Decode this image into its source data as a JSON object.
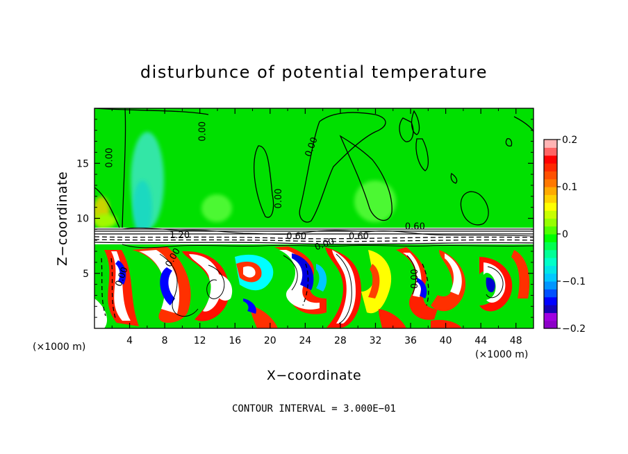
{
  "chart_data": {
    "type": "heatmap",
    "title": "disturbunce of potential temperature",
    "xlabel": "X−coordinate",
    "ylabel": "Z−coordinate",
    "x_unit_label": "(×1000 m)",
    "xlim": [
      0,
      50
    ],
    "ylim": [
      0,
      20
    ],
    "x_ticks": [
      4,
      8,
      12,
      16,
      20,
      24,
      28,
      32,
      36,
      40,
      44,
      48
    ],
    "y_ticks": [
      5,
      10,
      15
    ],
    "contour_interval_text": "CONTOUR INTERVAL = 3.000E−01",
    "colorbar": {
      "range": [
        -0.2,
        0.2
      ],
      "tick_labels": [
        "0.2",
        "0.1",
        "0",
        "−0.1",
        "−0.2"
      ],
      "tick_values": [
        0.2,
        0.1,
        0,
        -0.1,
        -0.2
      ],
      "colors": [
        "#8c00c8",
        "#a000e0",
        "#1400b4",
        "#0000ff",
        "#0050ff",
        "#0096ff",
        "#00c8ff",
        "#00e6e6",
        "#00ffc8",
        "#00ff96",
        "#00ff50",
        "#00ff00",
        "#50ff00",
        "#96ff00",
        "#c8ff00",
        "#ffff00",
        "#ffd200",
        "#ffaa00",
        "#ff7800",
        "#ff5000",
        "#ff2800",
        "#ff0000",
        "#ff6464",
        "#ffb4b4"
      ]
    },
    "contour_labels": [
      {
        "text": "0.00",
        "x": 2.0,
        "y": 15.5,
        "angle": -90
      },
      {
        "text": "0.00",
        "x": 12.6,
        "y": 17.9,
        "angle": -90
      },
      {
        "text": "0.00",
        "x": 25.0,
        "y": 16.4,
        "angle": -70
      },
      {
        "text": "0.00",
        "x": 21.3,
        "y": 11.8,
        "angle": -90
      },
      {
        "text": "0.60",
        "x": 36.5,
        "y": 9.0,
        "angle": 0
      },
      {
        "text": "1.20",
        "x": 9.7,
        "y": 8.2,
        "angle": 0
      },
      {
        "text": "0.60",
        "x": 23.0,
        "y": 8.1,
        "angle": 0
      },
      {
        "text": "0.00",
        "x": 26.3,
        "y": 7.4,
        "angle": -20
      },
      {
        "text": "0.60",
        "x": 30.1,
        "y": 8.1,
        "angle": 0
      },
      {
        "text": "0.00",
        "x": 9.2,
        "y": 6.3,
        "angle": -60
      },
      {
        "text": "0.00",
        "x": 3.4,
        "y": 4.6,
        "angle": -70
      },
      {
        "text": "0.00",
        "x": 36.8,
        "y": 4.5,
        "angle": -90
      }
    ]
  }
}
